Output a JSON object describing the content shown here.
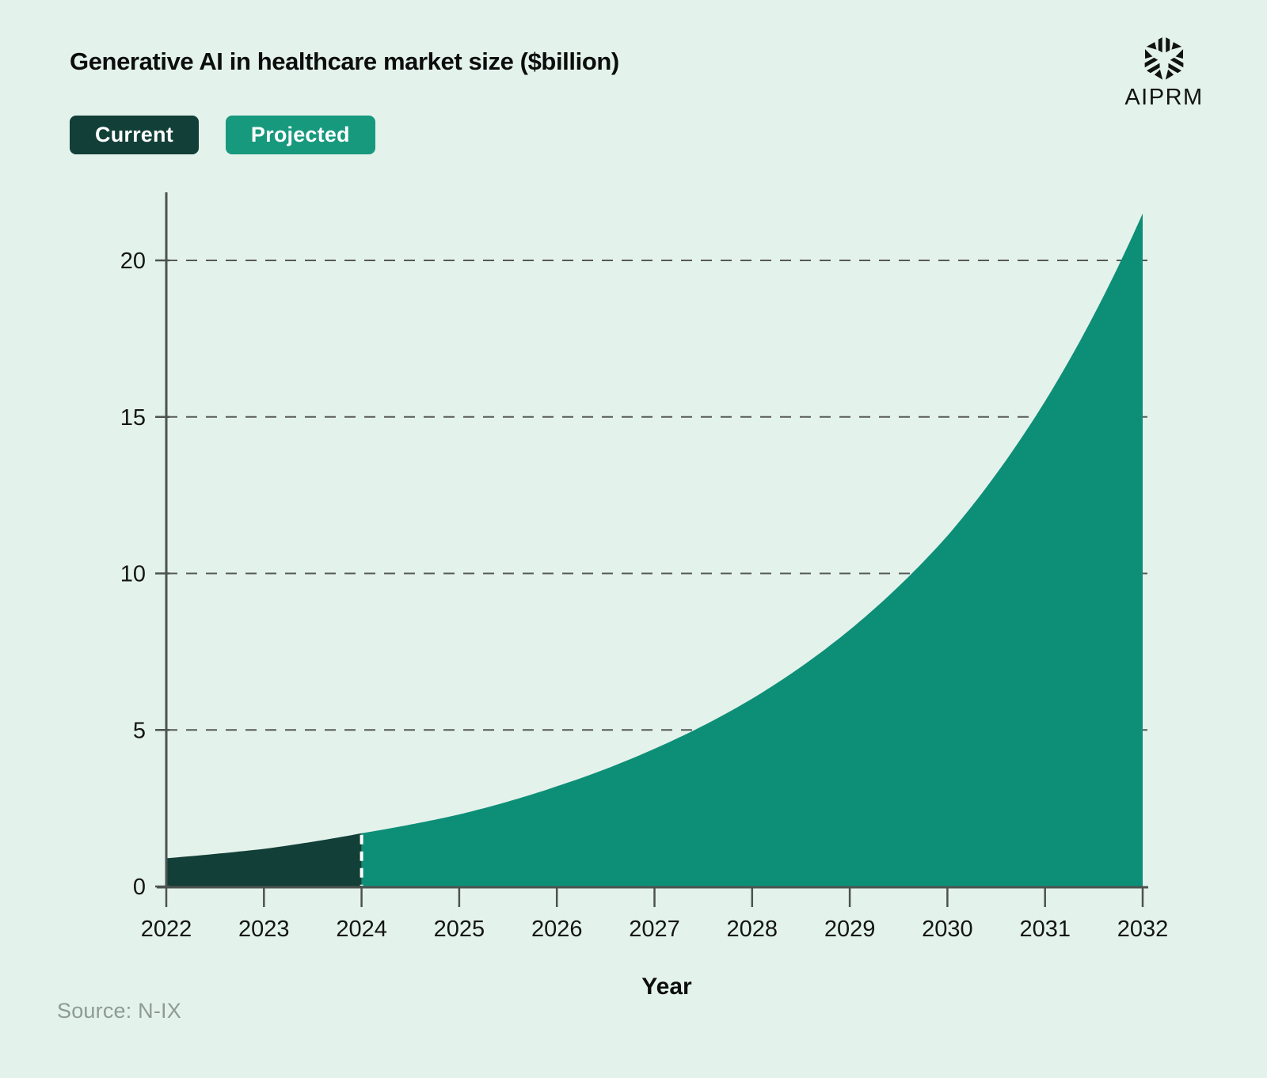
{
  "header": {
    "title": "Generative AI in healthcare market size ($billion)"
  },
  "legend": {
    "current_label": "Current",
    "projected_label": "Projected"
  },
  "brand": {
    "name": "AIPRM",
    "icon": "aiprm-cube-logo"
  },
  "footer": {
    "source": "Source: N-IX"
  },
  "colors": {
    "background": "#e4f2ec",
    "current": "#123f37",
    "current_chip": "#123f37",
    "projected": "#0d8f77",
    "projected_chip": "#17997e",
    "axis": "#4d5350",
    "grid": "#565a57",
    "text": "#141614",
    "source_text": "#8f9a96",
    "divider": "#ffffff",
    "chip_text": "#ffffff"
  },
  "chart_data": {
    "type": "area",
    "title": "Generative AI in healthcare market size ($billion)",
    "xlabel": "Year",
    "ylabel": "",
    "categories": [
      2022,
      2023,
      2024,
      2025,
      2026,
      2027,
      2028,
      2029,
      2030,
      2031,
      2032
    ],
    "series": [
      {
        "name": "Current",
        "years": [
          2022,
          2023,
          2024
        ],
        "values": [
          0.9,
          1.2,
          1.7
        ]
      },
      {
        "name": "Projected",
        "years": [
          2024,
          2025,
          2026,
          2027,
          2028,
          2029,
          2030,
          2031,
          2032
        ],
        "values": [
          1.7,
          2.3,
          3.2,
          4.4,
          6.0,
          8.2,
          11.2,
          15.5,
          21.5
        ]
      }
    ],
    "split_year": 2024,
    "y_ticks": [
      0,
      5,
      10,
      15,
      20
    ],
    "ylim": [
      0,
      22
    ],
    "xlim": [
      2022,
      2032
    ],
    "grid": "dashed-horizontal",
    "legend_position": "top-left",
    "curve": "smooth-exponential"
  }
}
